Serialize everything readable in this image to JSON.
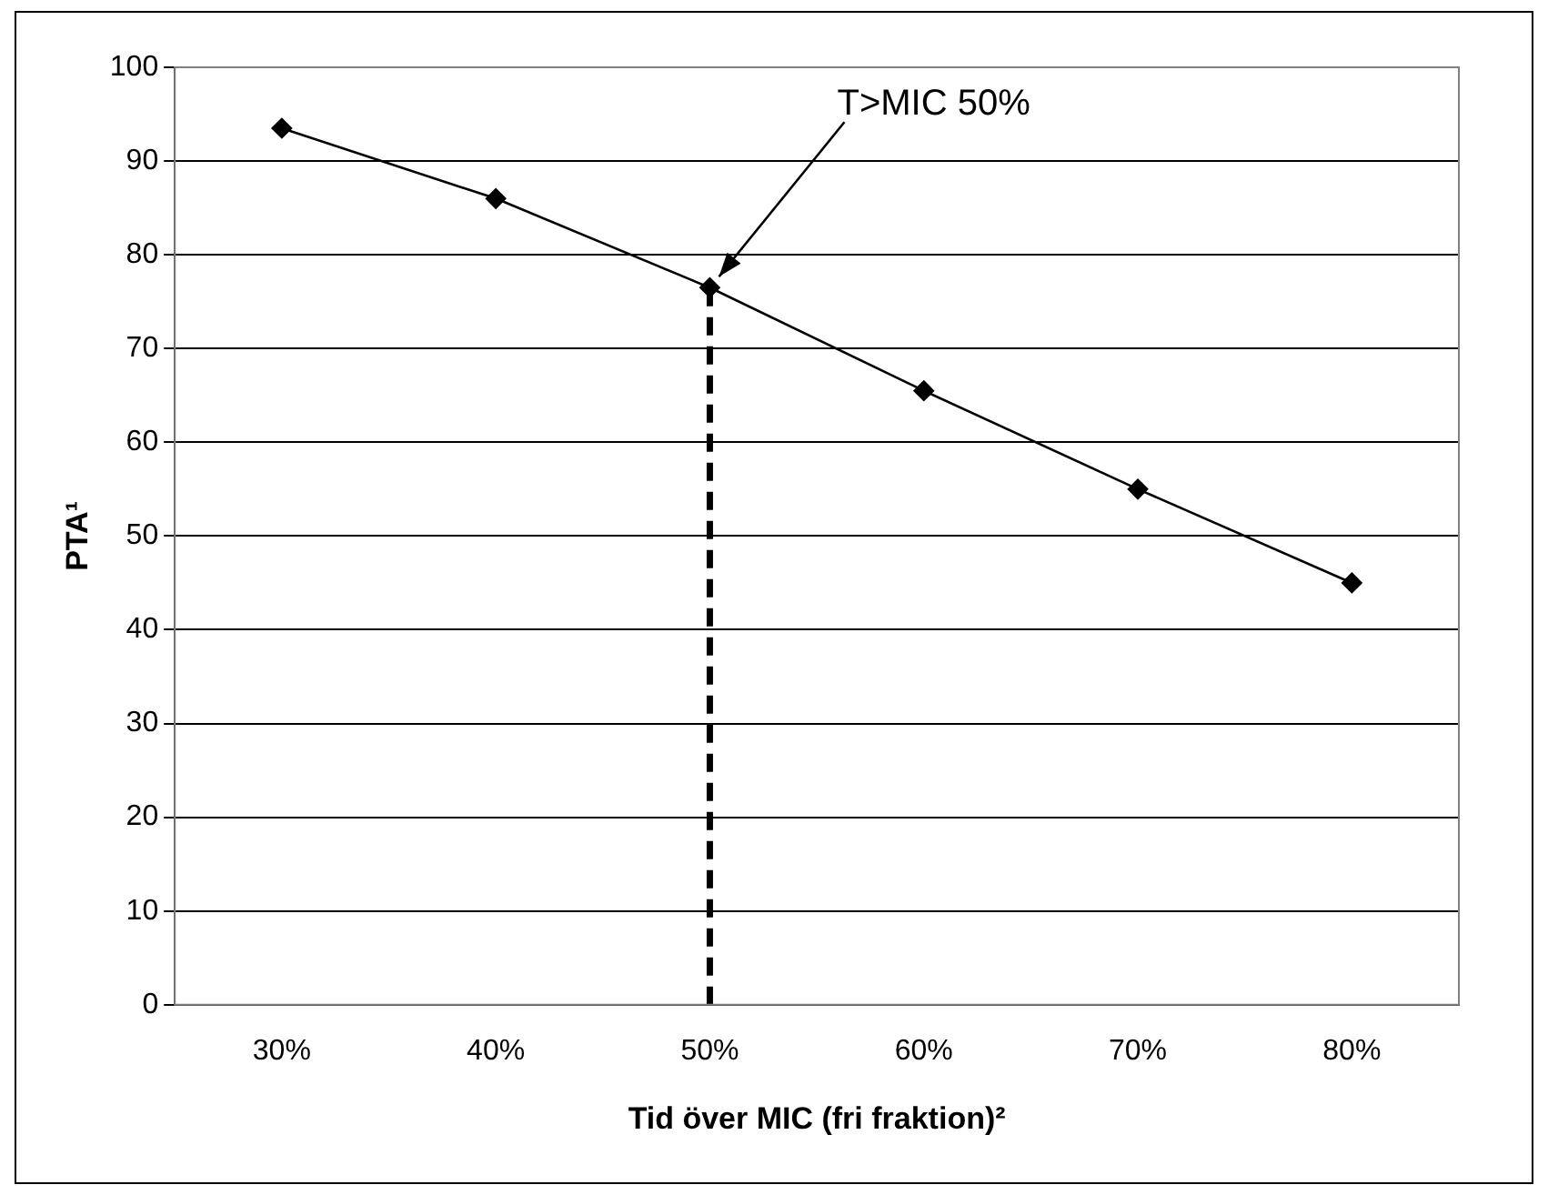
{
  "chart_data": {
    "type": "line",
    "xlabel": "Tid över MIC (fri fraktion)²",
    "ylabel": "PTA¹",
    "categories": [
      "30%",
      "40%",
      "50%",
      "60%",
      "70%",
      "80%"
    ],
    "series": [
      {
        "color": "#000000",
        "values": [
          93.5,
          86,
          76.5,
          65.5,
          55,
          45
        ]
      }
    ],
    "ylim": [
      0,
      100
    ],
    "yticks": [
      0,
      10,
      20,
      30,
      40,
      50,
      60,
      70,
      80,
      90,
      100
    ],
    "grid": "y",
    "legend": false,
    "marker": "diamond",
    "line_style": "solid",
    "ref_lines": [
      {
        "axis": "x",
        "value": "50%",
        "color": "#000000",
        "line_style": "dashed"
      }
    ],
    "annotations": [
      {
        "text": "T>MIC 50%",
        "x": "50%",
        "y": 76.5
      }
    ]
  }
}
